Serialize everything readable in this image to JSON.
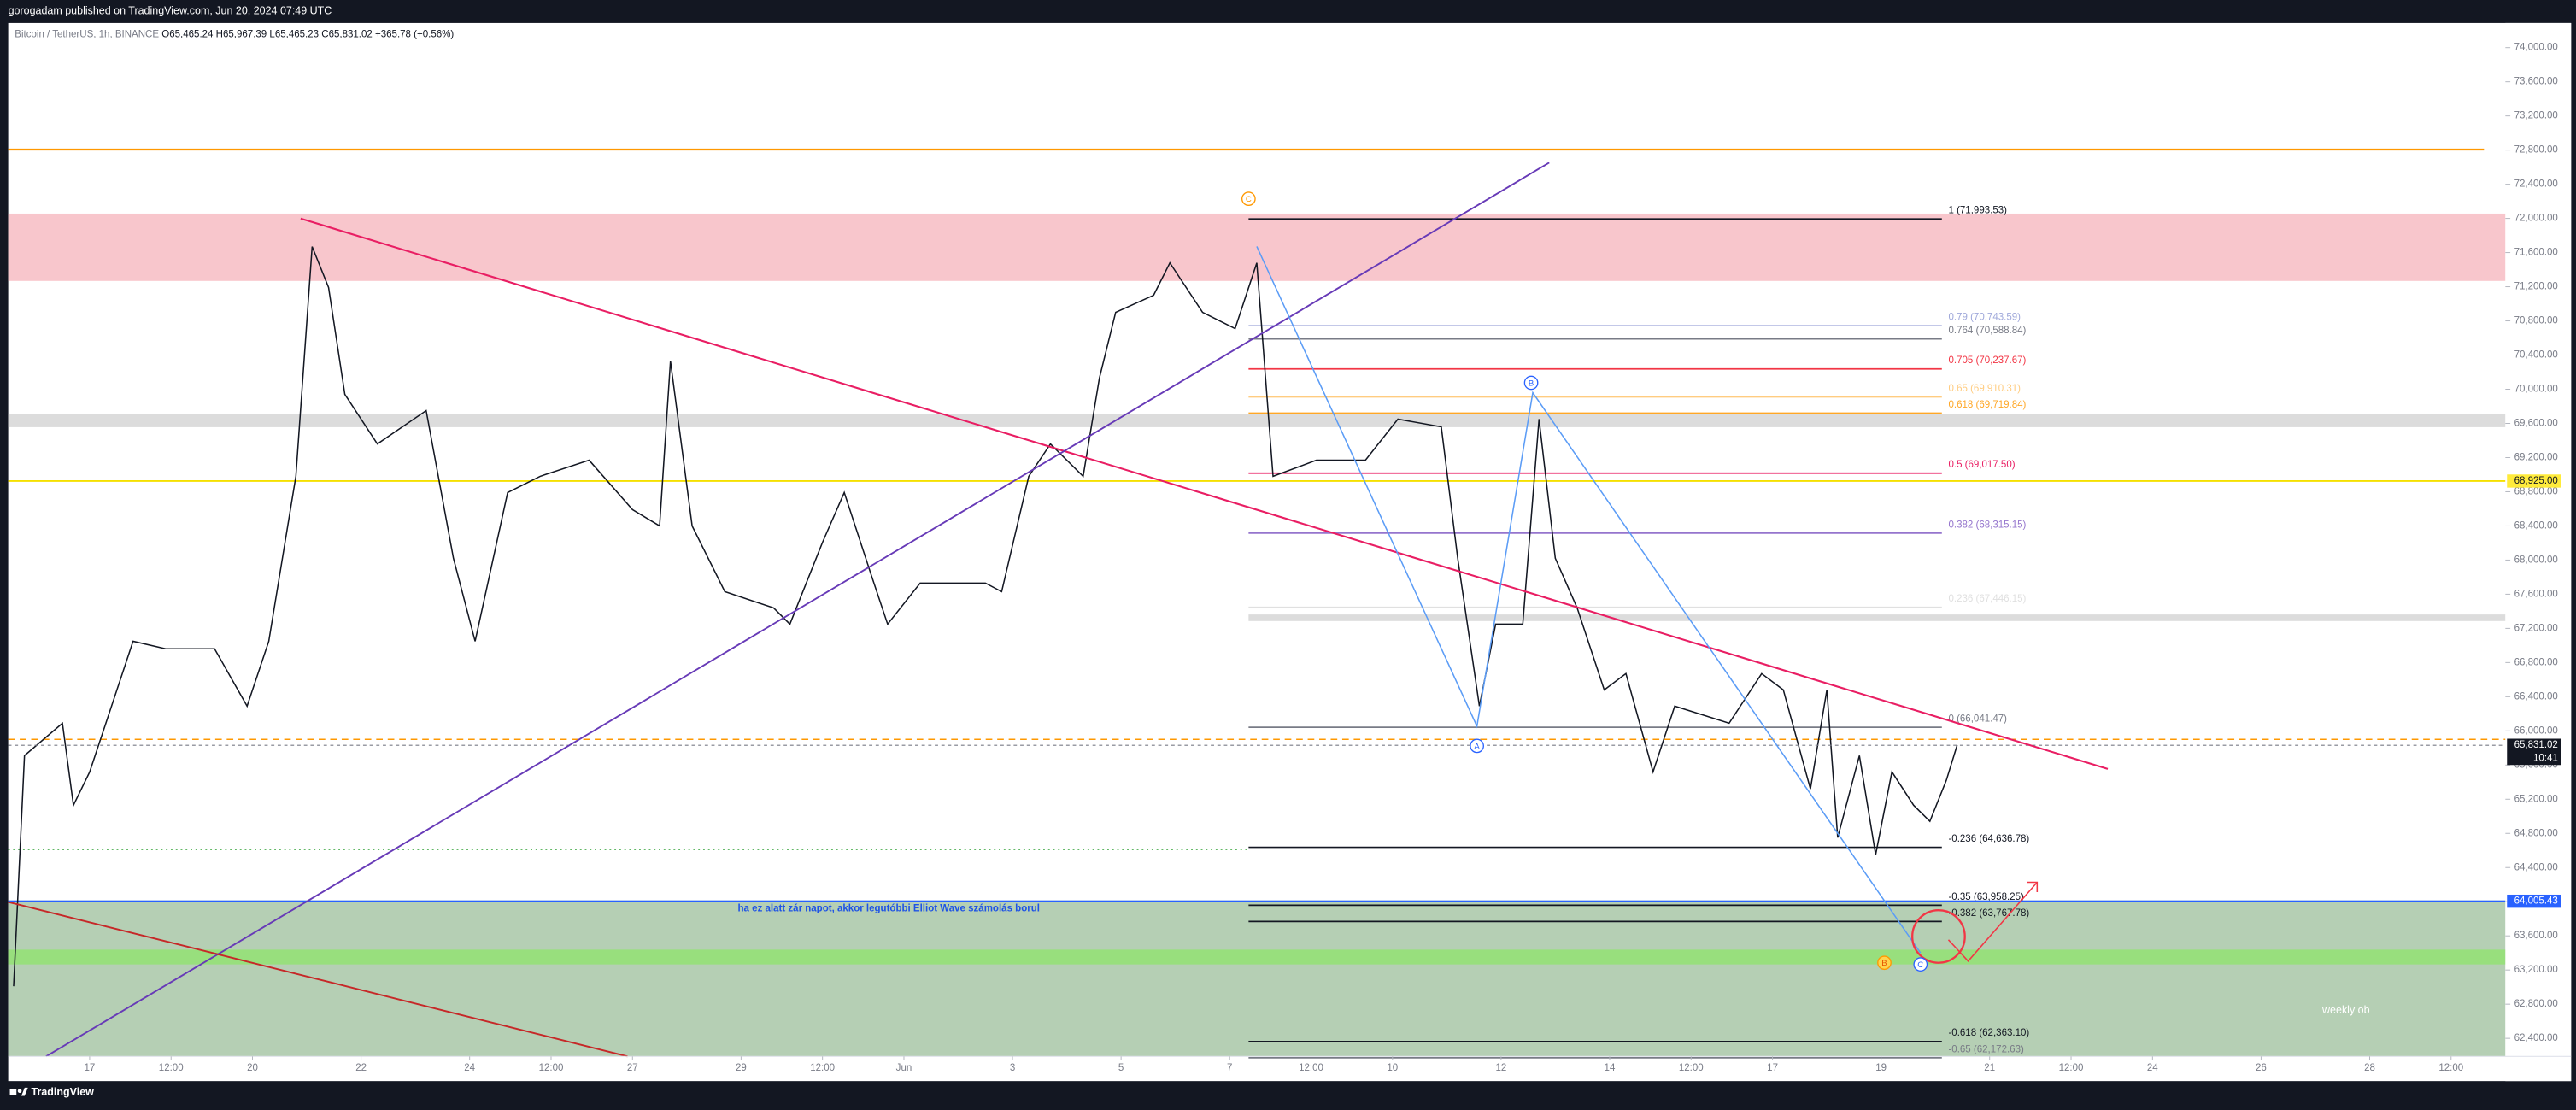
{
  "header": "gorogadam published on TradingView.com, Jun 20, 2024 07:49 UTC",
  "footer": "TradingView",
  "chart_data": {
    "type": "line",
    "symbol": "Bitcoin / TetherUS, 1h, BINANCE",
    "ohlc": [
      "O65,465.24",
      "H65,967.39",
      "L65,465.23",
      "C65,831.02",
      "+365.78 (+0.56%)"
    ],
    "x": [
      -1.4,
      -1.2,
      -0.5,
      -0.3,
      0,
      0.8,
      1.4,
      2.3,
      2.9,
      3.3,
      3.8,
      4.1,
      4.4,
      4.7,
      5.3,
      6.2,
      6.7,
      7.1,
      7.7,
      8.3,
      9.2,
      10,
      10.5,
      10.7,
      11.1,
      11.7,
      12.6,
      12.9,
      13.5,
      13.9,
      14.4,
      14.7,
      15.3,
      16.5,
      16.8,
      17.3,
      17.7,
      18.3,
      18.6,
      18.9,
      19.6,
      19.9,
      20.5,
      21.1,
      21.5,
      21.8,
      22.6,
      23.5,
      24.1,
      24.9,
      25.2,
      25.6,
      25.9,
      26.4,
      26.7,
      27,
      27.4,
      27.9,
      28.3,
      28.8,
      29.2,
      30.2,
      30.8,
      31.2,
      31.7,
      32,
      32.2,
      32.6,
      32.9,
      33.2,
      33.6,
      33.9,
      34.2,
      34.4
    ],
    "series": [
      {
        "color": "#131722",
        "values": [
          63010,
          65710,
          66090,
          65130,
          65520,
          67050,
          66960,
          66960,
          66290,
          67050,
          68980,
          71670,
          71190,
          69940,
          69360,
          69750,
          68020,
          67050,
          68790,
          68980,
          69170,
          68590,
          68400,
          70330,
          68400,
          67630,
          67440,
          67250,
          68210,
          68790,
          67820,
          67250,
          67730,
          67730,
          67630,
          68980,
          69360,
          68980,
          70130,
          70900,
          71100,
          71480,
          70900,
          70710,
          71480,
          68980,
          69170,
          69170,
          69650,
          69560,
          68020,
          66290,
          67250,
          67250,
          69650,
          68020,
          67440,
          66480,
          66670,
          65520,
          66290,
          66090,
          66670,
          66480,
          65320,
          66480,
          64750,
          65710,
          64550,
          65520,
          65130,
          64940,
          65420,
          65831.02
        ]
      }
    ],
    "xlim": [
      -1.5,
      44.5
    ],
    "ylim": [
      62188,
      74288
    ],
    "xticks": [
      {
        "value": 0,
        "label": "17"
      },
      {
        "value": 1.5,
        "label": "12:00"
      },
      {
        "value": 3,
        "label": "20"
      },
      {
        "value": 5,
        "label": "22"
      },
      {
        "value": 7,
        "label": "24"
      },
      {
        "value": 8.5,
        "label": "12:00"
      },
      {
        "value": 10,
        "label": "27"
      },
      {
        "value": 12,
        "label": "29"
      },
      {
        "value": 13.5,
        "label": "12:00"
      },
      {
        "value": 15,
        "label": "Jun"
      },
      {
        "value": 17,
        "label": "3"
      },
      {
        "value": 19,
        "label": "5"
      },
      {
        "value": 21,
        "label": "7"
      },
      {
        "value": 22.5,
        "label": "12:00"
      },
      {
        "value": 24,
        "label": "10"
      },
      {
        "value": 26,
        "label": "12"
      },
      {
        "value": 28,
        "label": "14"
      },
      {
        "value": 29.5,
        "label": "12:00"
      },
      {
        "value": 31,
        "label": "17"
      },
      {
        "value": 33,
        "label": "19"
      },
      {
        "value": 35,
        "label": "21"
      },
      {
        "value": 36.5,
        "label": "12:00"
      },
      {
        "value": 38,
        "label": "24"
      },
      {
        "value": 40,
        "label": "26"
      },
      {
        "value": 42,
        "label": "28"
      },
      {
        "value": 43.5,
        "label": "12:00"
      }
    ],
    "yticks": [
      {
        "value": 62400,
        "label": "62,400.00"
      },
      {
        "value": 62800,
        "label": "62,800.00"
      },
      {
        "value": 63200,
        "label": "63,200.00"
      },
      {
        "value": 63600,
        "label": "63,600.00"
      },
      {
        "value": 64000,
        "label": "64,000.00"
      },
      {
        "value": 64400,
        "label": "64,400.00"
      },
      {
        "value": 64800,
        "label": "64,800.00"
      },
      {
        "value": 65200,
        "label": "65,200.00"
      },
      {
        "value": 65600,
        "label": "65,600.00"
      },
      {
        "value": 66000,
        "label": "66,000.00"
      },
      {
        "value": 66400,
        "label": "66,400.00"
      },
      {
        "value": 66800,
        "label": "66,800.00"
      },
      {
        "value": 67200,
        "label": "67,200.00"
      },
      {
        "value": 67600,
        "label": "67,600.00"
      },
      {
        "value": 68000,
        "label": "68,000.00"
      },
      {
        "value": 68400,
        "label": "68,400.00"
      },
      {
        "value": 68800,
        "label": "68,800.00"
      },
      {
        "value": 69200,
        "label": "69,200.00"
      },
      {
        "value": 69600,
        "label": "69,600.00"
      },
      {
        "value": 70000,
        "label": "70,000.00"
      },
      {
        "value": 70400,
        "label": "70,400.00"
      },
      {
        "value": 70800,
        "label": "70,800.00"
      },
      {
        "value": 71200,
        "label": "71,200.00"
      },
      {
        "value": 71600,
        "label": "71,600.00"
      },
      {
        "value": 72000,
        "label": "72,000.00"
      },
      {
        "value": 72400,
        "label": "72,400.00"
      },
      {
        "value": 72800,
        "label": "72,800.00"
      },
      {
        "value": 73200,
        "label": "73,200.00"
      },
      {
        "value": 73600,
        "label": "73,600.00"
      },
      {
        "value": 74000,
        "label": "74,000.00"
      }
    ],
    "fib_levels": [
      {
        "label": "1 (71,993.53)",
        "price": 71993.53,
        "color": "#131722"
      },
      {
        "label": "0.79 (70,743.59)",
        "price": 70743.59,
        "color": "#9fa8da"
      },
      {
        "label": "0.764 (70,588.84)",
        "price": 70588.84,
        "color": "#787b86"
      },
      {
        "label": "0.705 (70,237.67)",
        "price": 70237.67,
        "color": "#f23645"
      },
      {
        "label": "0.65 (69,910.31)",
        "price": 69910.31,
        "color": "#ffcc80"
      },
      {
        "label": "0.618 (69,719.84)",
        "price": 69719.84,
        "color": "#ffa726"
      },
      {
        "label": "0.5 (69,017.50)",
        "price": 69017.5,
        "color": "#e91e63"
      },
      {
        "label": "0.382 (68,315.15)",
        "price": 68315.15,
        "color": "#9575cd"
      },
      {
        "label": "0.236 (67,446.15)",
        "price": 67446.15,
        "color": "#e0e0e0"
      },
      {
        "label": "0 (66,041.47)",
        "price": 66041.47,
        "color": "#787b86"
      },
      {
        "label": "-0.236 (64,636.78)",
        "price": 64636.78,
        "color": "#131722"
      },
      {
        "label": "-0.35 (63,958.25)",
        "price": 63958.25,
        "color": "#131722"
      },
      {
        "label": "-0.382 (63,767.78)",
        "price": 63767.78,
        "color": "#131722"
      },
      {
        "label": "-0.618 (62,363.10)",
        "price": 62363.1,
        "color": "#131722"
      },
      {
        "label": "-0.65 (62,172.63)",
        "price": 62172.63,
        "color": "#787b86"
      }
    ],
    "price_tags": [
      {
        "label": "68,925.00",
        "price": 68925,
        "color": "#ffeb3b",
        "text_color": "#131722"
      },
      {
        "label": "64,005.43",
        "price": 64005.43,
        "color": "#2962ff",
        "text_color": "#ffffff"
      }
    ],
    "last_price": {
      "label": "65,831.02",
      "price": 65831.02,
      "countdown": "10:41"
    },
    "annotations": {
      "note": "ha ez alatt zár napot, akkor legutóbbi Elliot Wave számolás borul",
      "zone": "weekly ob"
    },
    "wave_labels": [
      "C",
      "A",
      "B",
      "C",
      "B"
    ]
  }
}
